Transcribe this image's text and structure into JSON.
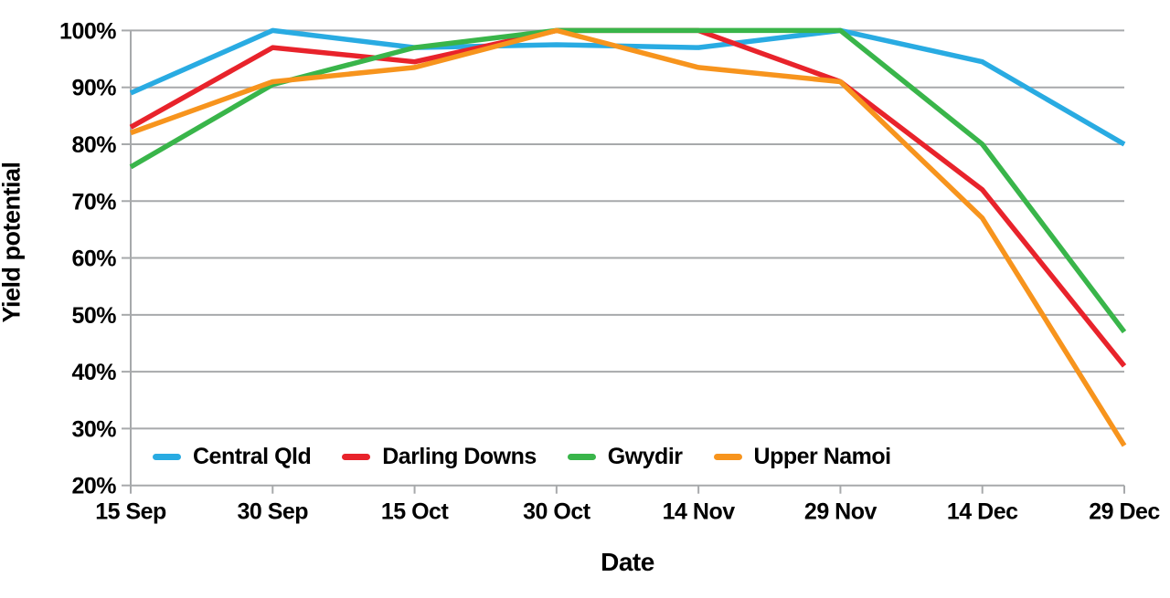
{
  "chart_data": {
    "type": "line",
    "title": "",
    "xlabel": "Date",
    "ylabel": "Yield potential",
    "categories": [
      "15 Sep",
      "30 Sep",
      "15 Oct",
      "30 Oct",
      "14 Nov",
      "29 Nov",
      "14 Dec",
      "29 Dec"
    ],
    "y_tick_labels": [
      "100%",
      "90%",
      "80%",
      "70%",
      "60%",
      "50%",
      "40%",
      "30%",
      "20%"
    ],
    "y_tick_values": [
      100,
      90,
      80,
      70,
      60,
      50,
      40,
      30,
      20
    ],
    "ylim": [
      20,
      100
    ],
    "grid": "horizontal",
    "legend_position": "bottom-left-inside",
    "series": [
      {
        "name": "Central Qld",
        "color": "#29ABE2",
        "values": [
          89,
          100,
          97,
          97.5,
          97,
          100,
          94.5,
          80
        ]
      },
      {
        "name": "Darling Downs",
        "color": "#E8232B",
        "values": [
          83,
          97,
          94.5,
          100,
          100,
          91,
          72,
          41
        ]
      },
      {
        "name": "Gwydir",
        "color": "#39B54A",
        "values": [
          76,
          90.5,
          97,
          100,
          100,
          100,
          80,
          47
        ]
      },
      {
        "name": "Upper Namoi",
        "color": "#F7941D",
        "values": [
          82,
          91,
          93.5,
          100,
          93.5,
          91,
          67,
          27
        ]
      }
    ],
    "colors": {
      "grid": "#A7A9AB",
      "axis": "#A7A9AB",
      "text": "#000000",
      "background": "#FFFFFF"
    }
  }
}
